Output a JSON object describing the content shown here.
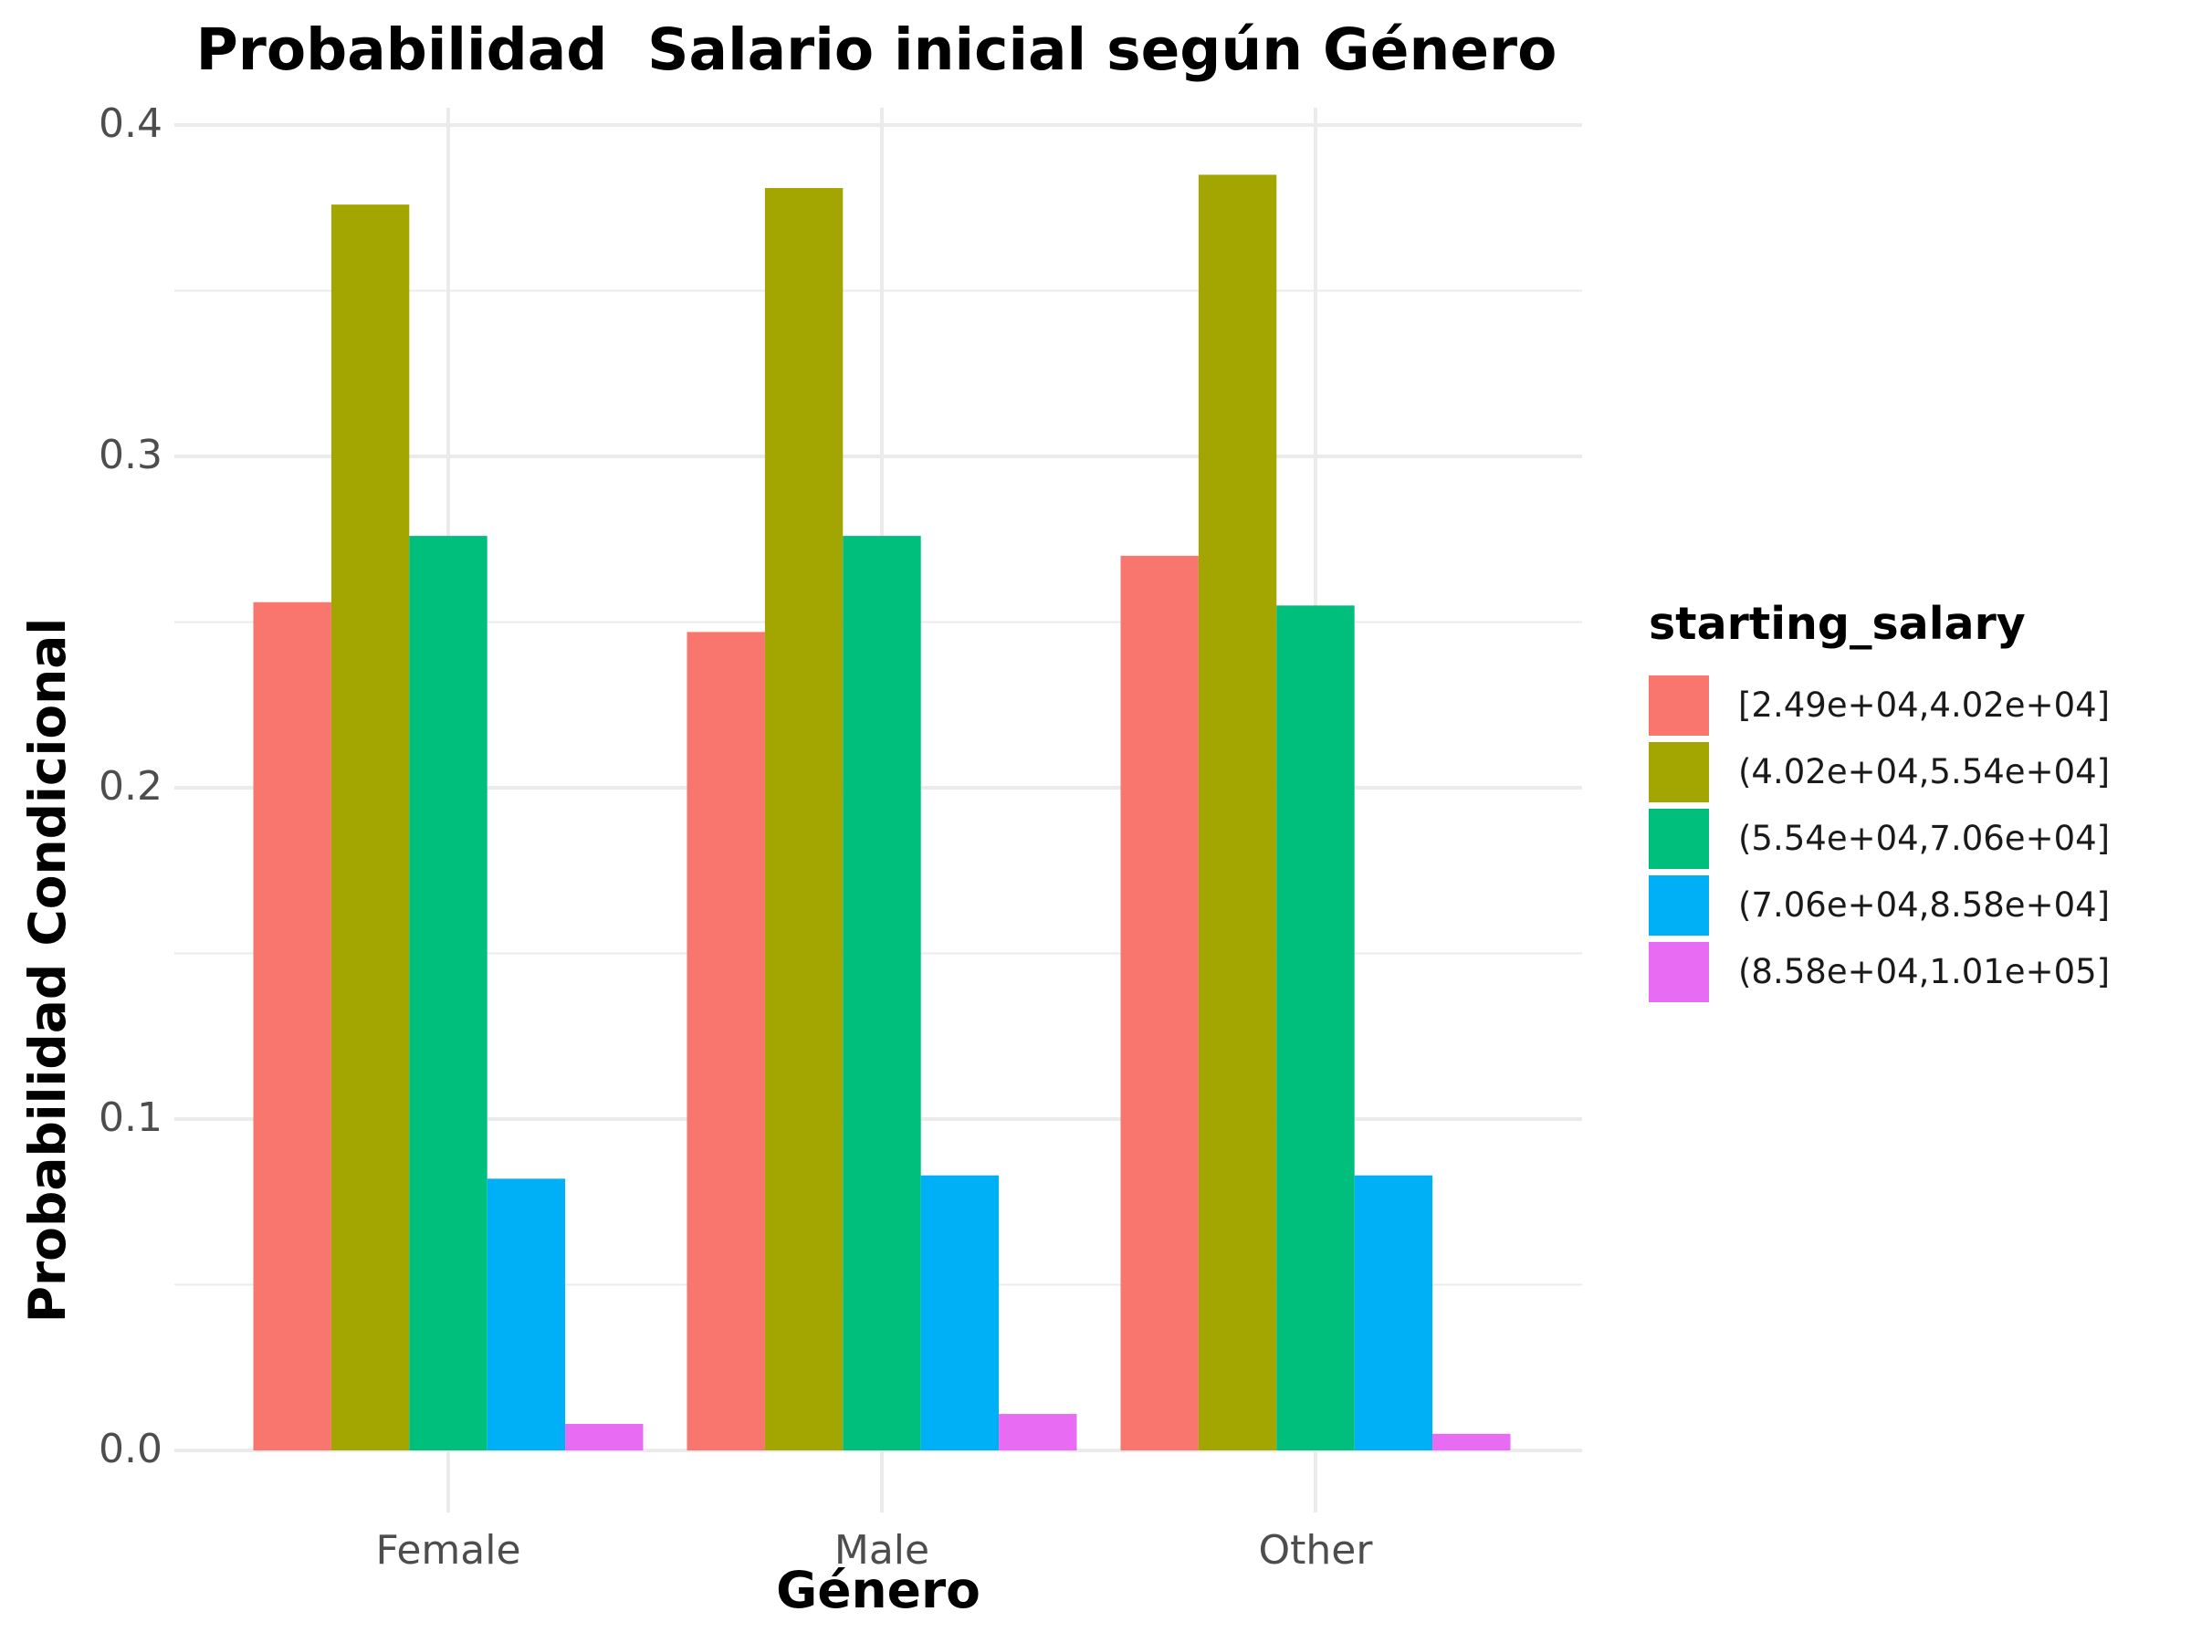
{
  "chart_data": {
    "type": "bar",
    "title": "Probabilidad  Salario inicial según Género",
    "xlabel": "Género",
    "ylabel": "Probabilidad Condicional",
    "categories": [
      "Female",
      "Male",
      "Other"
    ],
    "ylim": [
      0,
      0.4
    ],
    "yticks": [
      "0.0",
      "0.1",
      "0.2",
      "0.3",
      "0.4"
    ],
    "grid": true,
    "legend_title": "starting_salary",
    "legend_position": "right",
    "series": [
      {
        "name": "[2.49e+04,4.02e+04]",
        "color": "#F8766D",
        "values": [
          0.256,
          0.247,
          0.27
        ]
      },
      {
        "name": "(4.02e+04,5.54e+04]",
        "color": "#A3A500",
        "values": [
          0.376,
          0.381,
          0.385
        ]
      },
      {
        "name": "(5.54e+04,7.06e+04]",
        "color": "#00BF7D",
        "values": [
          0.276,
          0.276,
          0.255
        ]
      },
      {
        "name": "(7.06e+04,8.58e+04]",
        "color": "#00B0F6",
        "values": [
          0.082,
          0.083,
          0.083
        ]
      },
      {
        "name": "(8.58e+04,1.01e+05]",
        "color": "#E76BF3",
        "values": [
          0.008,
          0.011,
          0.005
        ]
      }
    ]
  }
}
